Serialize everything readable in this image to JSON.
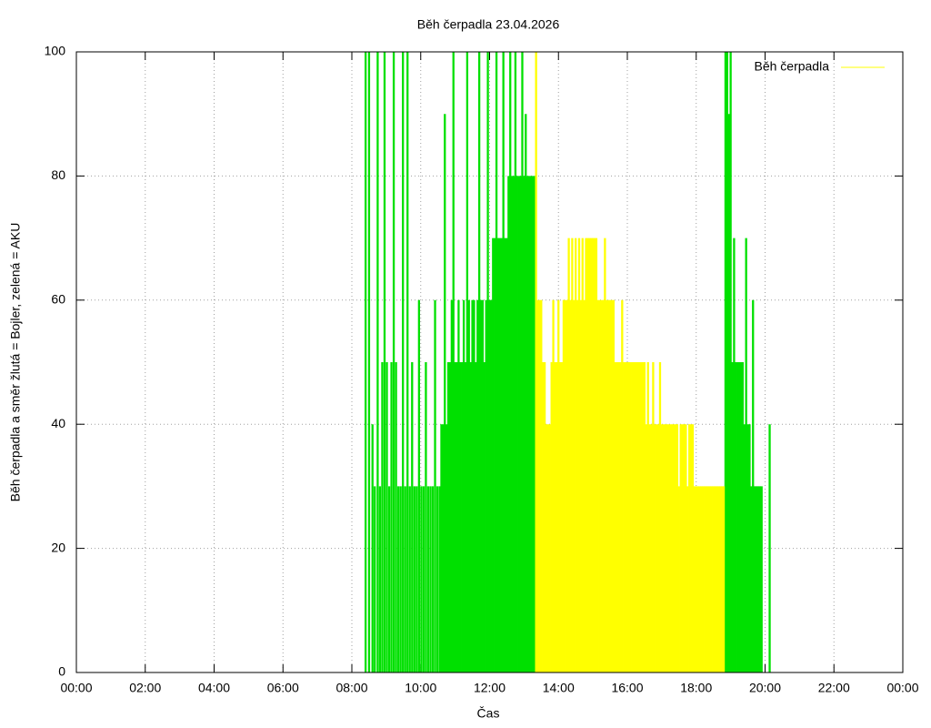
{
  "chart_data": {
    "type": "impulse",
    "title": "Běh čerpadla 23.04.2026",
    "x_label": "Čas",
    "y_label": "Běh čerpadla a směr žlutá = Bojler, zelená = AKU",
    "xlim": [
      0,
      1440
    ],
    "xticks": [
      {
        "value": 0,
        "label": "00:00"
      },
      {
        "value": 120,
        "label": "02:00"
      },
      {
        "value": 240,
        "label": "04:00"
      },
      {
        "value": 360,
        "label": "06:00"
      },
      {
        "value": 480,
        "label": "08:00"
      },
      {
        "value": 600,
        "label": "10:00"
      },
      {
        "value": 720,
        "label": "12:00"
      },
      {
        "value": 840,
        "label": "14:00"
      },
      {
        "value": 960,
        "label": "16:00"
      },
      {
        "value": 1080,
        "label": "18:00"
      },
      {
        "value": 1200,
        "label": "20:00"
      },
      {
        "value": 1320,
        "label": "22:00"
      },
      {
        "value": 1440,
        "label": "00:00"
      }
    ],
    "ylim": [
      0,
      100
    ],
    "yticks": [
      0,
      20,
      40,
      60,
      80,
      100
    ],
    "grid": true,
    "legend": "top-right",
    "series": [
      {
        "color": "#00e000",
        "x": [
          504,
          510,
          516,
          520,
          525,
          529,
          533,
          537,
          541,
          545,
          549,
          553,
          557,
          561,
          565,
          569,
          573,
          577,
          581,
          585,
          589,
          593,
          597,
          601,
          605,
          609,
          613,
          617,
          621,
          625,
          629,
          633,
          636,
          639,
          642,
          645,
          648,
          651,
          654,
          657,
          660,
          663,
          666,
          669,
          672,
          675,
          678,
          681,
          684,
          687,
          690,
          693,
          696,
          699,
          702,
          705,
          708,
          711,
          714,
          717,
          720,
          723,
          726,
          729,
          732,
          735,
          738,
          741,
          744,
          747,
          750,
          753,
          756,
          759,
          762,
          765,
          768,
          771,
          774,
          777,
          780,
          783,
          786,
          789,
          792,
          795,
          798,
          1131,
          1134,
          1137,
          1140,
          1143,
          1146,
          1149,
          1152,
          1155,
          1158,
          1161,
          1164,
          1167,
          1170,
          1173,
          1176,
          1179,
          1182,
          1185,
          1188,
          1191,
          1194,
          1208
        ],
        "values": [
          100,
          100,
          40,
          30,
          100,
          30,
          50,
          100,
          50,
          30,
          50,
          100,
          50,
          30,
          30,
          100,
          30,
          100,
          30,
          50,
          30,
          30,
          60,
          30,
          30,
          50,
          30,
          30,
          30,
          60,
          30,
          30,
          40,
          40,
          90,
          40,
          50,
          50,
          60,
          100,
          50,
          50,
          60,
          50,
          50,
          60,
          50,
          100,
          60,
          50,
          60,
          60,
          50,
          60,
          100,
          60,
          60,
          50,
          60,
          100,
          60,
          60,
          70,
          70,
          100,
          70,
          70,
          70,
          100,
          70,
          70,
          80,
          100,
          80,
          80,
          100,
          80,
          80,
          80,
          100,
          80,
          90,
          80,
          80,
          80,
          80,
          80,
          100,
          100,
          90,
          100,
          50,
          70,
          50,
          50,
          50,
          50,
          50,
          40,
          70,
          40,
          40,
          30,
          60,
          30,
          30,
          30,
          30,
          30,
          40
        ]
      },
      {
        "name": "Běh čerpadla",
        "color": "#ffff00",
        "x": [
          801,
          804,
          807,
          810,
          813,
          816,
          819,
          822,
          825,
          828,
          831,
          834,
          837,
          840,
          843,
          846,
          849,
          852,
          855,
          858,
          861,
          864,
          867,
          870,
          873,
          876,
          879,
          882,
          885,
          888,
          891,
          894,
          897,
          900,
          903,
          906,
          909,
          912,
          915,
          918,
          921,
          924,
          927,
          930,
          933,
          936,
          939,
          942,
          945,
          948,
          951,
          954,
          957,
          960,
          963,
          966,
          969,
          972,
          975,
          978,
          981,
          984,
          987,
          990,
          993,
          996,
          999,
          1002,
          1005,
          1008,
          1011,
          1014,
          1017,
          1020,
          1023,
          1026,
          1029,
          1032,
          1035,
          1038,
          1041,
          1044,
          1047,
          1050,
          1053,
          1056,
          1059,
          1062,
          1065,
          1068,
          1071,
          1074,
          1077,
          1080,
          1083,
          1086,
          1089,
          1092,
          1095,
          1098,
          1101,
          1104,
          1107,
          1110,
          1113,
          1116,
          1119,
          1122,
          1125,
          1128
        ],
        "values": [
          100,
          60,
          60,
          60,
          50,
          50,
          40,
          40,
          40,
          50,
          60,
          50,
          50,
          60,
          50,
          50,
          60,
          60,
          60,
          70,
          60,
          70,
          60,
          70,
          60,
          70,
          60,
          70,
          60,
          70,
          70,
          70,
          70,
          70,
          70,
          70,
          60,
          60,
          60,
          60,
          70,
          60,
          60,
          60,
          60,
          60,
          50,
          50,
          50,
          50,
          60,
          50,
          50,
          50,
          50,
          50,
          50,
          50,
          50,
          50,
          50,
          50,
          50,
          50,
          40,
          50,
          40,
          40,
          50,
          40,
          40,
          40,
          50,
          40,
          40,
          40,
          40,
          40,
          40,
          40,
          40,
          40,
          40,
          30,
          40,
          40,
          40,
          40,
          30,
          40,
          40,
          40,
          30,
          30,
          30,
          30,
          30,
          30,
          30,
          30,
          30,
          30,
          30,
          30,
          30,
          30,
          30,
          30,
          30,
          30
        ]
      }
    ]
  }
}
